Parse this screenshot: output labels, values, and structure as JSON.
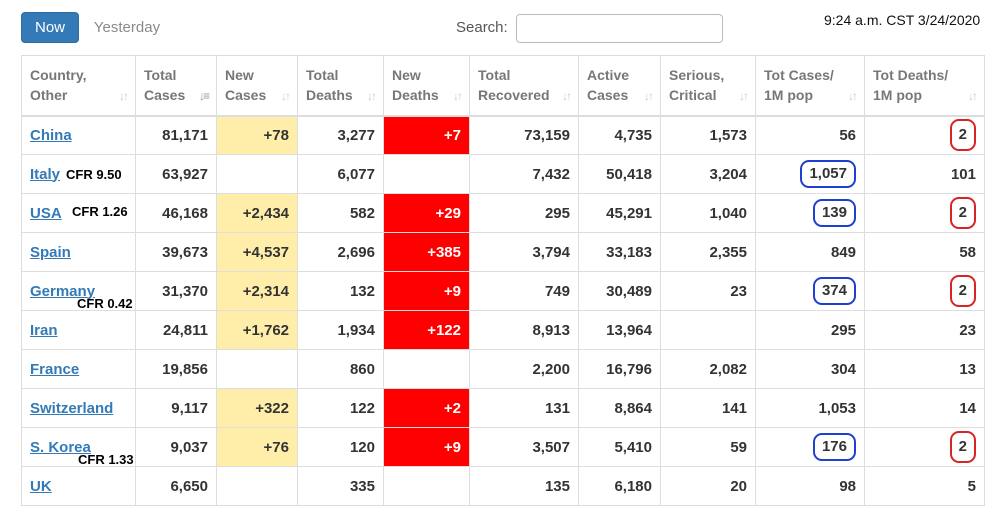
{
  "toolbar": {
    "now_label": "Now",
    "yesterday_label": "Yesterday",
    "search_label": "Search:",
    "search_value": ""
  },
  "timestamp": "9:24 a.m. CST 3/24/2020",
  "table": {
    "headers": [
      {
        "line1": "Country,",
        "line2": "Other"
      },
      {
        "line1": "Total",
        "line2": "Cases"
      },
      {
        "line1": "New",
        "line2": "Cases"
      },
      {
        "line1": "Total",
        "line2": "Deaths"
      },
      {
        "line1": "New",
        "line2": "Deaths"
      },
      {
        "line1": "Total",
        "line2": "Recovered"
      },
      {
        "line1": "Active",
        "line2": "Cases"
      },
      {
        "line1": "Serious,",
        "line2": "Critical"
      },
      {
        "line1": "Tot Cases/",
        "line2": "1M pop"
      },
      {
        "line1": "Tot Deaths/",
        "line2": "1M pop"
      }
    ],
    "sort_icon_glyph": "↓↑",
    "sort_active_glyph": "↓≡",
    "rows": [
      {
        "country": "China",
        "note": "",
        "total_cases": "81,171",
        "new_cases": "+78",
        "total_deaths": "3,277",
        "new_deaths": "+7",
        "total_recovered": "73,159",
        "active_cases": "4,735",
        "serious": "1,573",
        "cases_per_1m": "56",
        "deaths_per_1m": "2"
      },
      {
        "country": "Italy",
        "note": "CFR 9.50",
        "total_cases": "63,927",
        "new_cases": "",
        "total_deaths": "6,077",
        "new_deaths": "",
        "total_recovered": "7,432",
        "active_cases": "50,418",
        "serious": "3,204",
        "cases_per_1m": "1,057",
        "deaths_per_1m": "101"
      },
      {
        "country": "USA",
        "note": "CFR 1.26",
        "total_cases": "46,168",
        "new_cases": "+2,434",
        "total_deaths": "582",
        "new_deaths": "+29",
        "total_recovered": "295",
        "active_cases": "45,291",
        "serious": "1,040",
        "cases_per_1m": "139",
        "deaths_per_1m": "2"
      },
      {
        "country": "Spain",
        "note": "",
        "total_cases": "39,673",
        "new_cases": "+4,537",
        "total_deaths": "2,696",
        "new_deaths": "+385",
        "total_recovered": "3,794",
        "active_cases": "33,183",
        "serious": "2,355",
        "cases_per_1m": "849",
        "deaths_per_1m": "58"
      },
      {
        "country": "Germany",
        "note": "CFR 0.42",
        "total_cases": "31,370",
        "new_cases": "+2,314",
        "total_deaths": "132",
        "new_deaths": "+9",
        "total_recovered": "749",
        "active_cases": "30,489",
        "serious": "23",
        "cases_per_1m": "374",
        "deaths_per_1m": "2"
      },
      {
        "country": "Iran",
        "note": "",
        "total_cases": "24,811",
        "new_cases": "+1,762",
        "total_deaths": "1,934",
        "new_deaths": "+122",
        "total_recovered": "8,913",
        "active_cases": "13,964",
        "serious": "",
        "cases_per_1m": "295",
        "deaths_per_1m": "23"
      },
      {
        "country": "France",
        "note": "",
        "total_cases": "19,856",
        "new_cases": "",
        "total_deaths": "860",
        "new_deaths": "",
        "total_recovered": "2,200",
        "active_cases": "16,796",
        "serious": "2,082",
        "cases_per_1m": "304",
        "deaths_per_1m": "13"
      },
      {
        "country": "Switzerland",
        "note": "",
        "total_cases": "9,117",
        "new_cases": "+322",
        "total_deaths": "122",
        "new_deaths": "+2",
        "total_recovered": "131",
        "active_cases": "8,864",
        "serious": "141",
        "cases_per_1m": "1,053",
        "deaths_per_1m": "14"
      },
      {
        "country": "S. Korea",
        "note": "CFR 1.33",
        "total_cases": "9,037",
        "new_cases": "+76",
        "total_deaths": "120",
        "new_deaths": "+9",
        "total_recovered": "3,507",
        "active_cases": "5,410",
        "serious": "59",
        "cases_per_1m": "176",
        "deaths_per_1m": "2"
      },
      {
        "country": "UK",
        "note": "",
        "total_cases": "6,650",
        "new_cases": "",
        "total_deaths": "335",
        "new_deaths": "",
        "total_recovered": "135",
        "active_cases": "6,180",
        "serious": "20",
        "cases_per_1m": "98",
        "deaths_per_1m": "5"
      }
    ]
  },
  "colors": {
    "primary_button": "#337ab7",
    "link": "#337ab7",
    "new_cases_bg": "#ffeeaa",
    "new_deaths_bg": "#ff0000",
    "annotation_blue": "#1f3fd0",
    "annotation_red": "#d92424"
  }
}
